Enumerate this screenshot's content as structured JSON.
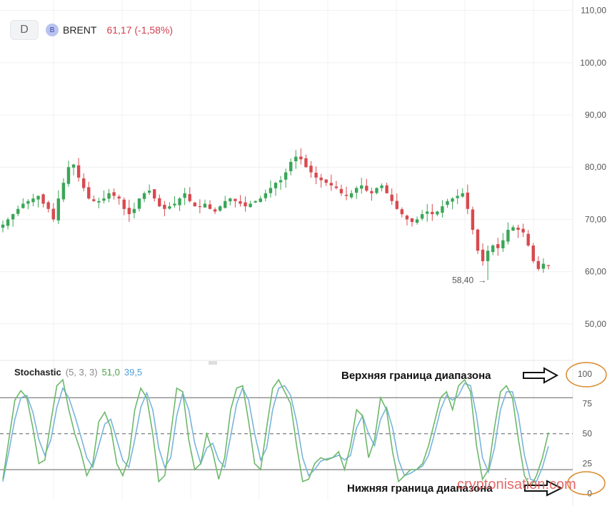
{
  "header": {
    "timeframe": "D",
    "badge": "B",
    "symbol": "BRENT",
    "price": "61,17 (-1,58%)"
  },
  "stochastic": {
    "name": "Stochastic",
    "params": "(5, 3, 3)",
    "k_value": "51,0",
    "d_value": "39,5"
  },
  "annotations": {
    "upper": "Верхняя граница диапазона",
    "lower": "Нижняя граница диапазона"
  },
  "watermark": "cryptonisation.com",
  "colors": {
    "up": "#3aa657",
    "down": "#d84a4f",
    "k_line": "#6db86a",
    "d_line": "#79b4dc",
    "circle": "#d98a2b"
  },
  "chart_data": [
    {
      "type": "candlestick",
      "y_ticks": [
        "110,00",
        "100,00",
        "90,00",
        "80,00",
        "70,00",
        "60,00",
        "50,00"
      ],
      "ylim": [
        43,
        112
      ],
      "close_path": [
        69,
        70,
        71,
        72,
        73,
        73.5,
        74,
        74.5,
        73,
        72,
        70,
        74,
        77,
        80,
        80.5,
        78,
        76,
        74,
        73.5,
        73.5,
        74,
        75,
        74.5,
        74,
        72,
        71,
        72,
        74,
        75,
        75.5,
        74,
        72.5,
        72,
        72.5,
        73,
        74,
        75,
        73.5,
        72.5,
        72.5,
        73,
        72,
        71.5,
        72.5,
        73.5,
        74,
        73.5,
        73,
        72.5,
        73,
        73.5,
        74,
        75,
        76,
        77,
        77.5,
        79,
        81,
        82,
        81.5,
        80,
        79,
        78,
        77.5,
        77,
        76.5,
        76,
        75,
        74.5,
        75,
        76,
        76.5,
        75.5,
        75,
        76,
        76.5,
        75,
        73.5,
        72,
        71,
        70,
        69.5,
        70,
        71,
        71.5,
        71,
        71.5,
        72.5,
        73.5,
        74,
        74.5,
        75,
        72,
        68,
        64,
        62,
        64,
        65,
        64.5,
        66,
        68,
        68.5,
        68,
        67.5,
        65,
        62,
        60.5,
        61.5,
        61.2
      ],
      "annotation": {
        "label": "58,40",
        "value": 58.4
      }
    },
    {
      "type": "line",
      "name": "Stochastic",
      "y_ticks": [
        "100",
        "75",
        "50",
        "25",
        "0"
      ],
      "ylim": [
        -5,
        107
      ],
      "reference_lines": [
        80,
        50,
        20
      ],
      "k_values": [
        12,
        45,
        78,
        86,
        80,
        55,
        25,
        28,
        60,
        90,
        95,
        70,
        50,
        35,
        15,
        25,
        60,
        68,
        55,
        25,
        15,
        30,
        70,
        88,
        80,
        50,
        10,
        15,
        50,
        88,
        85,
        45,
        20,
        25,
        50,
        35,
        12,
        30,
        70,
        88,
        90,
        60,
        25,
        20,
        55,
        88,
        95,
        85,
        75,
        40,
        10,
        12,
        25,
        30,
        28,
        30,
        35,
        20,
        40,
        70,
        65,
        30,
        45,
        80,
        70,
        35,
        10,
        15,
        20,
        20,
        25,
        40,
        60,
        80,
        85,
        70,
        90,
        95,
        85,
        40,
        12,
        20,
        55,
        85,
        90,
        80,
        45,
        15,
        5,
        15,
        30,
        51
      ],
      "d_values": [
        10,
        35,
        62,
        80,
        82,
        68,
        45,
        32,
        45,
        72,
        88,
        80,
        65,
        48,
        30,
        22,
        40,
        58,
        62,
        45,
        28,
        22,
        45,
        72,
        84,
        70,
        38,
        22,
        30,
        65,
        84,
        70,
        42,
        25,
        38,
        42,
        28,
        22,
        48,
        75,
        88,
        78,
        50,
        28,
        38,
        70,
        88,
        90,
        82,
        60,
        30,
        15,
        20,
        27,
        29,
        30,
        32,
        28,
        32,
        55,
        65,
        50,
        40,
        62,
        72,
        55,
        28,
        15,
        17,
        20,
        23,
        32,
        50,
        70,
        82,
        78,
        82,
        92,
        90,
        65,
        30,
        18,
        38,
        70,
        85,
        85,
        65,
        32,
        12,
        10,
        22,
        39.5
      ]
    }
  ]
}
